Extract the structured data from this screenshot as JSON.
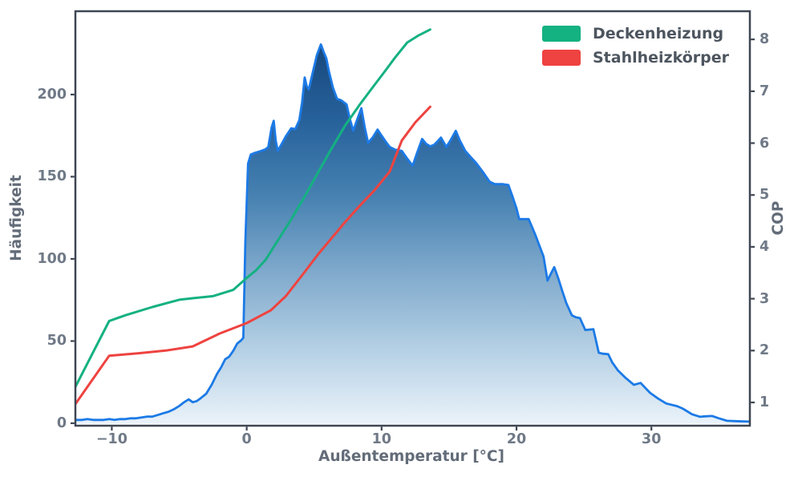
{
  "figure": {
    "xlabel": "Außentemperatur [°C]",
    "ylabel_left": "Häufigkeit",
    "ylabel_right": "COP",
    "legend": [
      {
        "label": "Deckenheizung",
        "color": "#14b181"
      },
      {
        "label": "Stahlheizkörper",
        "color": "#ee4340"
      }
    ]
  },
  "chart_data": {
    "type": "area+line",
    "title": "",
    "xlabel": "Außentemperatur [°C]",
    "ylabel_left": "Häufigkeit",
    "ylabel_right": "COP",
    "xlim": [
      -12.7,
      37.3
    ],
    "ylim_left": [
      -1.5,
      250.7
    ],
    "ylim_right": [
      0.552,
      8.543
    ],
    "grid": false,
    "legend_position": "upper right",
    "x_ticks": [
      {
        "v": -10,
        "label": "−10"
      },
      {
        "v": 0,
        "label": "0"
      },
      {
        "v": 10,
        "label": "10"
      },
      {
        "v": 20,
        "label": "20"
      },
      {
        "v": 30,
        "label": "30"
      }
    ],
    "y_ticks_left": [
      {
        "v": 0,
        "label": "0"
      },
      {
        "v": 50,
        "label": "50"
      },
      {
        "v": 100,
        "label": "100"
      },
      {
        "v": 150,
        "label": "150"
      },
      {
        "v": 200,
        "label": "200"
      }
    ],
    "y_ticks_right": [
      {
        "v": 1,
        "label": "1"
      },
      {
        "v": 2,
        "label": "2"
      },
      {
        "v": 3,
        "label": "3"
      },
      {
        "v": 4,
        "label": "4"
      },
      {
        "v": 5,
        "label": "5"
      },
      {
        "v": 6,
        "label": "6"
      },
      {
        "v": 7,
        "label": "7"
      },
      {
        "v": 8,
        "label": "8"
      }
    ],
    "histogram": {
      "name": "Häufigkeit",
      "axis": "left",
      "line_color": "#1c7ae6",
      "gradient_stops": [
        {
          "offset": 0.0,
          "color": "#16487c"
        },
        {
          "offset": 0.2,
          "color": "#27619b"
        },
        {
          "offset": 0.4,
          "color": "#4681b1"
        },
        {
          "offset": 0.6,
          "color": "#7fa9cc"
        },
        {
          "offset": 0.8,
          "color": "#b3cfe4"
        },
        {
          "offset": 1.0,
          "color": "#eaf2f9"
        }
      ],
      "points": [
        [
          -12.7,
          2
        ],
        [
          -12.2,
          2
        ],
        [
          -11.8,
          2.5
        ],
        [
          -11.4,
          2
        ],
        [
          -11,
          2
        ],
        [
          -10.6,
          2
        ],
        [
          -10.2,
          2.5
        ],
        [
          -9.8,
          2
        ],
        [
          -9.4,
          2.5
        ],
        [
          -9,
          2.5
        ],
        [
          -8.6,
          3
        ],
        [
          -8.2,
          3
        ],
        [
          -7.8,
          3.5
        ],
        [
          -7.4,
          4
        ],
        [
          -7,
          4
        ],
        [
          -6.6,
          5
        ],
        [
          -6.2,
          6
        ],
        [
          -5.8,
          7
        ],
        [
          -5.4,
          8.5
        ],
        [
          -5,
          10.5
        ],
        [
          -4.6,
          13
        ],
        [
          -4.3,
          14.5
        ],
        [
          -4,
          12.8
        ],
        [
          -3.7,
          13.5
        ],
        [
          -3.4,
          15.3
        ],
        [
          -3,
          18
        ],
        [
          -2.6,
          23.4
        ],
        [
          -2.2,
          30
        ],
        [
          -1.9,
          34
        ],
        [
          -1.6,
          38.9
        ],
        [
          -1.3,
          40.5
        ],
        [
          -1,
          44
        ],
        [
          -0.7,
          48.5
        ],
        [
          -0.4,
          50.5
        ],
        [
          -0.25,
          52
        ],
        [
          -0.1,
          110
        ],
        [
          0.1,
          158
        ],
        [
          0.3,
          163.5
        ],
        [
          0.6,
          164.5
        ],
        [
          1,
          165.5
        ],
        [
          1.35,
          166.5
        ],
        [
          1.6,
          168
        ],
        [
          1.85,
          180
        ],
        [
          2,
          184
        ],
        [
          2.15,
          172
        ],
        [
          2.3,
          165.7
        ],
        [
          2.6,
          170
        ],
        [
          2.9,
          174.6
        ],
        [
          3.3,
          179.5
        ],
        [
          3.6,
          179
        ],
        [
          3.9,
          184.4
        ],
        [
          4.1,
          195
        ],
        [
          4.3,
          210.4
        ],
        [
          4.45,
          205
        ],
        [
          4.6,
          203
        ],
        [
          4.8,
          210
        ],
        [
          5,
          217
        ],
        [
          5.2,
          224
        ],
        [
          5.5,
          230.5
        ],
        [
          5.7,
          226
        ],
        [
          5.9,
          222
        ],
        [
          6.1,
          214
        ],
        [
          6.4,
          203.9
        ],
        [
          6.7,
          197.4
        ],
        [
          7,
          196.5
        ],
        [
          7.4,
          194
        ],
        [
          7.65,
          185
        ],
        [
          7.9,
          178
        ],
        [
          8.2,
          185
        ],
        [
          8.5,
          191.7
        ],
        [
          8.75,
          180
        ],
        [
          9,
          170.6
        ],
        [
          9.35,
          174
        ],
        [
          9.7,
          178.7
        ],
        [
          10,
          175
        ],
        [
          10.3,
          171.4
        ],
        [
          10.6,
          168.1
        ],
        [
          11,
          166.5
        ],
        [
          11.5,
          165.7
        ],
        [
          11.9,
          161
        ],
        [
          12.3,
          156.7
        ],
        [
          12.65,
          165
        ],
        [
          13,
          173
        ],
        [
          13.3,
          170
        ],
        [
          13.6,
          168.5
        ],
        [
          13.9,
          169.5
        ],
        [
          14.2,
          172
        ],
        [
          14.4,
          173.8
        ],
        [
          14.6,
          171
        ],
        [
          14.8,
          168.1
        ],
        [
          15.1,
          172
        ],
        [
          15.5,
          177.9
        ],
        [
          15.8,
          172
        ],
        [
          16.2,
          165.7
        ],
        [
          16.6,
          162
        ],
        [
          17,
          158.4
        ],
        [
          17.5,
          153
        ],
        [
          18,
          147
        ],
        [
          18.4,
          145.5
        ],
        [
          19,
          145.5
        ],
        [
          19.4,
          145
        ],
        [
          19.7,
          138
        ],
        [
          20,
          130.7
        ],
        [
          20.2,
          124.2
        ],
        [
          20.9,
          124.2
        ],
        [
          21.4,
          114.5
        ],
        [
          21.7,
          108
        ],
        [
          22,
          101.5
        ],
        [
          22.3,
          86.8
        ],
        [
          22.55,
          91
        ],
        [
          22.8,
          95
        ],
        [
          23.1,
          88
        ],
        [
          23.4,
          80.3
        ],
        [
          23.7,
          73
        ],
        [
          24.1,
          65.7
        ],
        [
          24.4,
          64.5
        ],
        [
          24.7,
          64
        ],
        [
          25.1,
          56.7
        ],
        [
          25.4,
          57
        ],
        [
          25.7,
          57.2
        ],
        [
          26.1,
          42.9
        ],
        [
          26.4,
          42.3
        ],
        [
          26.8,
          42
        ],
        [
          27.1,
          37
        ],
        [
          27.5,
          32.3
        ],
        [
          28.1,
          27.5
        ],
        [
          28.7,
          23.4
        ],
        [
          29.2,
          24.5
        ],
        [
          29.9,
          18.5
        ],
        [
          30.5,
          15
        ],
        [
          31.1,
          12
        ],
        [
          31.9,
          10.4
        ],
        [
          32.3,
          9
        ],
        [
          32.5,
          8
        ],
        [
          33,
          5.5
        ],
        [
          33.6,
          3.9
        ],
        [
          34,
          4.2
        ],
        [
          34.5,
          4.4
        ],
        [
          35,
          3
        ],
        [
          35.6,
          1.5
        ],
        [
          36.2,
          1.3
        ],
        [
          36.8,
          1.1
        ],
        [
          37.3,
          1
        ]
      ]
    },
    "series": [
      {
        "name": "Deckenheizung",
        "axis": "right",
        "color": "#14b181",
        "points": [
          [
            -12.7,
            1.3
          ],
          [
            -10.2,
            2.57
          ],
          [
            -9,
            2.68
          ],
          [
            -7,
            2.84
          ],
          [
            -5,
            2.98
          ],
          [
            -4,
            3.01
          ],
          [
            -2.5,
            3.05
          ],
          [
            -1,
            3.17
          ],
          [
            0,
            3.4
          ],
          [
            0.7,
            3.55
          ],
          [
            1.4,
            3.75
          ],
          [
            2.3,
            4.12
          ],
          [
            3.3,
            4.53
          ],
          [
            4.3,
            4.97
          ],
          [
            5.3,
            5.44
          ],
          [
            6.3,
            5.9
          ],
          [
            7.3,
            6.34
          ],
          [
            8.4,
            6.75
          ],
          [
            9.3,
            7.06
          ],
          [
            10.2,
            7.37
          ],
          [
            11,
            7.65
          ],
          [
            11.9,
            7.94
          ],
          [
            12.7,
            8.07
          ],
          [
            13.6,
            8.19
          ]
        ]
      },
      {
        "name": "Stahlheizkörper",
        "axis": "right",
        "color": "#ee4340",
        "points": [
          [
            -12.7,
            0.97
          ],
          [
            -10.2,
            1.9
          ],
          [
            -8,
            1.95
          ],
          [
            -6,
            2.0
          ],
          [
            -4,
            2.08
          ],
          [
            -2,
            2.33
          ],
          [
            0,
            2.53
          ],
          [
            1.8,
            2.78
          ],
          [
            2.9,
            3.05
          ],
          [
            4.1,
            3.45
          ],
          [
            5.3,
            3.86
          ],
          [
            6.3,
            4.17
          ],
          [
            7.3,
            4.48
          ],
          [
            8.3,
            4.77
          ],
          [
            9.5,
            5.1
          ],
          [
            10.6,
            5.45
          ],
          [
            11.5,
            6.05
          ],
          [
            12.5,
            6.4
          ],
          [
            13.6,
            6.7
          ]
        ]
      }
    ],
    "colors": {
      "spine": "#3e4653",
      "tick_text": "#6f7987",
      "axis_label_text": "#636c79",
      "legend_text": "#4d555f",
      "background": "#ffffff"
    }
  }
}
